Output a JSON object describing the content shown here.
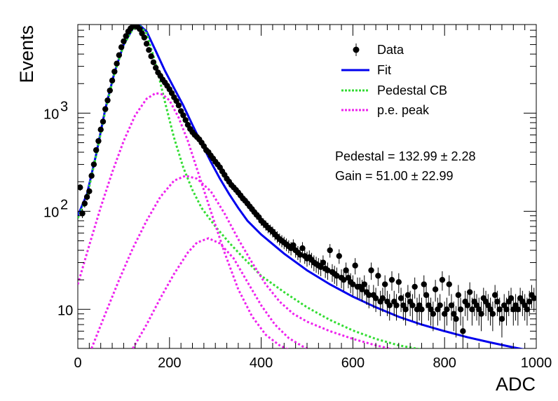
{
  "chart_data": {
    "type": "scatter",
    "title": "",
    "xlabel": "ADC",
    "ylabel": "Events",
    "xlim": [
      0,
      1000
    ],
    "ylim": [
      4,
      8000
    ],
    "y_scale": "log",
    "x_ticks": [
      {
        "value": 0,
        "label": "0"
      },
      {
        "value": 200,
        "label": "200"
      },
      {
        "value": 400,
        "label": "400"
      },
      {
        "value": 600,
        "label": "600"
      },
      {
        "value": 800,
        "label": "800"
      },
      {
        "value": 1000,
        "label": "1000"
      }
    ],
    "y_ticks": [
      {
        "value": 10,
        "base": "10",
        "exp": ""
      },
      {
        "value": 100,
        "base": "10",
        "exp": "2"
      },
      {
        "value": 1000,
        "base": "10",
        "exp": "3"
      }
    ],
    "legend_position": "top-right",
    "legend": [
      {
        "key": "data",
        "label": "Data",
        "style": "marker",
        "color": "#000000"
      },
      {
        "key": "fit",
        "label": "Fit",
        "style": "solid",
        "color": "#0000ee"
      },
      {
        "key": "ped",
        "label": "Pedestal CB",
        "style": "dotted",
        "color": "#33dd33"
      },
      {
        "key": "pe",
        "label": "p.e. peak",
        "style": "dotted",
        "color": "#ee22ee"
      }
    ],
    "annotations": [
      {
        "text": "Pedestal = 132.99 ± 2.28"
      },
      {
        "text": "Gain = 51.00 ± 22.99"
      }
    ],
    "series": [
      {
        "name": "Data",
        "color": "#000000",
        "style": "marker",
        "x": [
          5,
          10,
          15,
          20,
          25,
          30,
          35,
          40,
          45,
          50,
          55,
          60,
          65,
          70,
          75,
          80,
          85,
          90,
          95,
          100,
          105,
          110,
          115,
          120,
          125,
          130,
          135,
          140,
          145,
          150,
          155,
          160,
          165,
          170,
          175,
          180,
          185,
          190,
          195,
          200,
          205,
          210,
          215,
          220,
          225,
          230,
          235,
          240,
          245,
          250,
          255,
          260,
          265,
          270,
          275,
          280,
          285,
          290,
          295,
          300,
          305,
          310,
          315,
          320,
          325,
          330,
          335,
          340,
          345,
          350,
          355,
          360,
          365,
          370,
          375,
          380,
          385,
          390,
          395,
          400,
          405,
          410,
          415,
          420,
          425,
          430,
          435,
          440,
          445,
          450,
          455,
          460,
          465,
          470,
          475,
          480,
          485,
          490,
          495,
          500,
          505,
          510,
          515,
          520,
          525,
          530,
          535,
          540,
          545,
          550,
          555,
          560,
          565,
          570,
          575,
          580,
          585,
          590,
          595,
          600,
          605,
          610,
          615,
          620,
          625,
          630,
          635,
          640,
          645,
          650,
          655,
          660,
          665,
          670,
          675,
          680,
          685,
          690,
          695,
          700,
          705,
          710,
          715,
          720,
          725,
          730,
          735,
          740,
          745,
          750,
          755,
          760,
          765,
          770,
          775,
          780,
          785,
          790,
          795,
          800,
          805,
          810,
          815,
          820,
          825,
          830,
          835,
          840,
          845,
          850,
          855,
          860,
          865,
          870,
          875,
          880,
          885,
          890,
          895,
          900,
          905,
          910,
          915,
          920,
          925,
          930,
          935,
          940,
          945,
          950,
          955,
          960,
          965,
          970,
          975,
          980,
          985,
          990,
          995
        ],
        "y": [
          175,
          95,
          120,
          140,
          160,
          230,
          300,
          420,
          520,
          680,
          820,
          1100,
          1350,
          1700,
          2150,
          2650,
          3200,
          3900,
          4700,
          5400,
          6100,
          6800,
          7300,
          7700,
          7800,
          7600,
          7200,
          6500,
          5900,
          5100,
          4400,
          3800,
          3300,
          2900,
          2600,
          2400,
          2200,
          2050,
          1900,
          1750,
          1600,
          1450,
          1330,
          1200,
          1050,
          950,
          850,
          760,
          690,
          640,
          600,
          570,
          540,
          500,
          460,
          420,
          400,
          370,
          345,
          320,
          300,
          280,
          255,
          235,
          215,
          200,
          185,
          175,
          165,
          155,
          145,
          135,
          128,
          120,
          112,
          105,
          98,
          92,
          87,
          80,
          76,
          72,
          68,
          65,
          62,
          58,
          55,
          52,
          50,
          48,
          46,
          44,
          42,
          45,
          40,
          38,
          36,
          42,
          35,
          33,
          34,
          32,
          30,
          29,
          28,
          27,
          30,
          26,
          25,
          40,
          24,
          23,
          22,
          35,
          21,
          20,
          25,
          21,
          19,
          18,
          28,
          17,
          17,
          16,
          18,
          15,
          14,
          25,
          14,
          13,
          22,
          12,
          13,
          18,
          12,
          11,
          20,
          12,
          11,
          19,
          13,
          11,
          10,
          14,
          12,
          11,
          17,
          10,
          11,
          10,
          18,
          14,
          11,
          10,
          9,
          16,
          10,
          11,
          20,
          9,
          10,
          18,
          11,
          9,
          8,
          14,
          10,
          6,
          12,
          11,
          15,
          10,
          12,
          11,
          10,
          9,
          13,
          12,
          11,
          10,
          9,
          14,
          12,
          10,
          8,
          11,
          10,
          12,
          13,
          10,
          11,
          10,
          13,
          12,
          11,
          10,
          12,
          14,
          13
        ]
      },
      {
        "name": "Fit",
        "color": "#0000ee",
        "style": "solid",
        "x": [
          0,
          20,
          40,
          60,
          80,
          100,
          120,
          135,
          150,
          170,
          190,
          210,
          230,
          250,
          270,
          290,
          310,
          330,
          350,
          370,
          400,
          450,
          500,
          550,
          600,
          650,
          700,
          750,
          800,
          850,
          900,
          950,
          1000
        ],
        "y": [
          90,
          150,
          380,
          1100,
          2600,
          5000,
          7300,
          7900,
          6800,
          4300,
          2700,
          1800,
          1200,
          760,
          490,
          320,
          215,
          150,
          108,
          80,
          58,
          37,
          25,
          18,
          13.5,
          10.5,
          8.4,
          7,
          6,
          5.2,
          4.6,
          4.1,
          3.7
        ]
      },
      {
        "name": "Pedestal CB",
        "color": "#33dd33",
        "style": "dotted",
        "x": [
          0,
          20,
          40,
          60,
          80,
          100,
          120,
          135,
          150,
          170,
          190,
          210,
          230,
          250,
          270,
          300,
          330,
          360,
          400,
          450,
          500,
          550,
          600,
          650,
          700,
          750,
          780
        ],
        "y": [
          85,
          140,
          370,
          1050,
          2550,
          4900,
          7200,
          7800,
          6500,
          3200,
          1300,
          560,
          280,
          165,
          108,
          70,
          48,
          34,
          22,
          15,
          10.5,
          7.8,
          6.1,
          5,
          4.3,
          3.9,
          3.7
        ]
      },
      {
        "name": "p.e. peak 1",
        "color": "#ee22ee",
        "style": "dotted",
        "x": [
          0,
          25,
          50,
          75,
          100,
          125,
          150,
          170,
          185,
          200,
          220,
          240,
          260,
          290,
          320,
          350,
          380,
          410,
          440,
          470
        ],
        "y": [
          18,
          45,
          110,
          250,
          520,
          950,
          1400,
          1600,
          1550,
          1350,
          900,
          520,
          270,
          100,
          38,
          16,
          8.5,
          5.5,
          4.3,
          3.7
        ]
      },
      {
        "name": "p.e. peak 2",
        "color": "#ee22ee",
        "style": "dotted",
        "x": [
          30,
          60,
          90,
          120,
          150,
          180,
          210,
          235,
          260,
          290,
          320,
          350,
          380,
          410,
          440,
          470,
          500,
          550,
          600,
          650,
          700
        ],
        "y": [
          4,
          9,
          20,
          42,
          80,
          140,
          205,
          230,
          215,
          160,
          95,
          52,
          30,
          18,
          12,
          9,
          7.5,
          6,
          5,
          4.3,
          3.8
        ]
      },
      {
        "name": "p.e. peak 3",
        "color": "#ee22ee",
        "style": "dotted",
        "x": [
          120,
          150,
          180,
          210,
          240,
          260,
          285,
          310,
          340,
          370,
          400,
          430,
          460,
          490,
          510
        ],
        "y": [
          4,
          7,
          13,
          23,
          38,
          48,
          53,
          47,
          33,
          19,
          11,
          7,
          5.1,
          4.2,
          3.8
        ]
      }
    ]
  }
}
